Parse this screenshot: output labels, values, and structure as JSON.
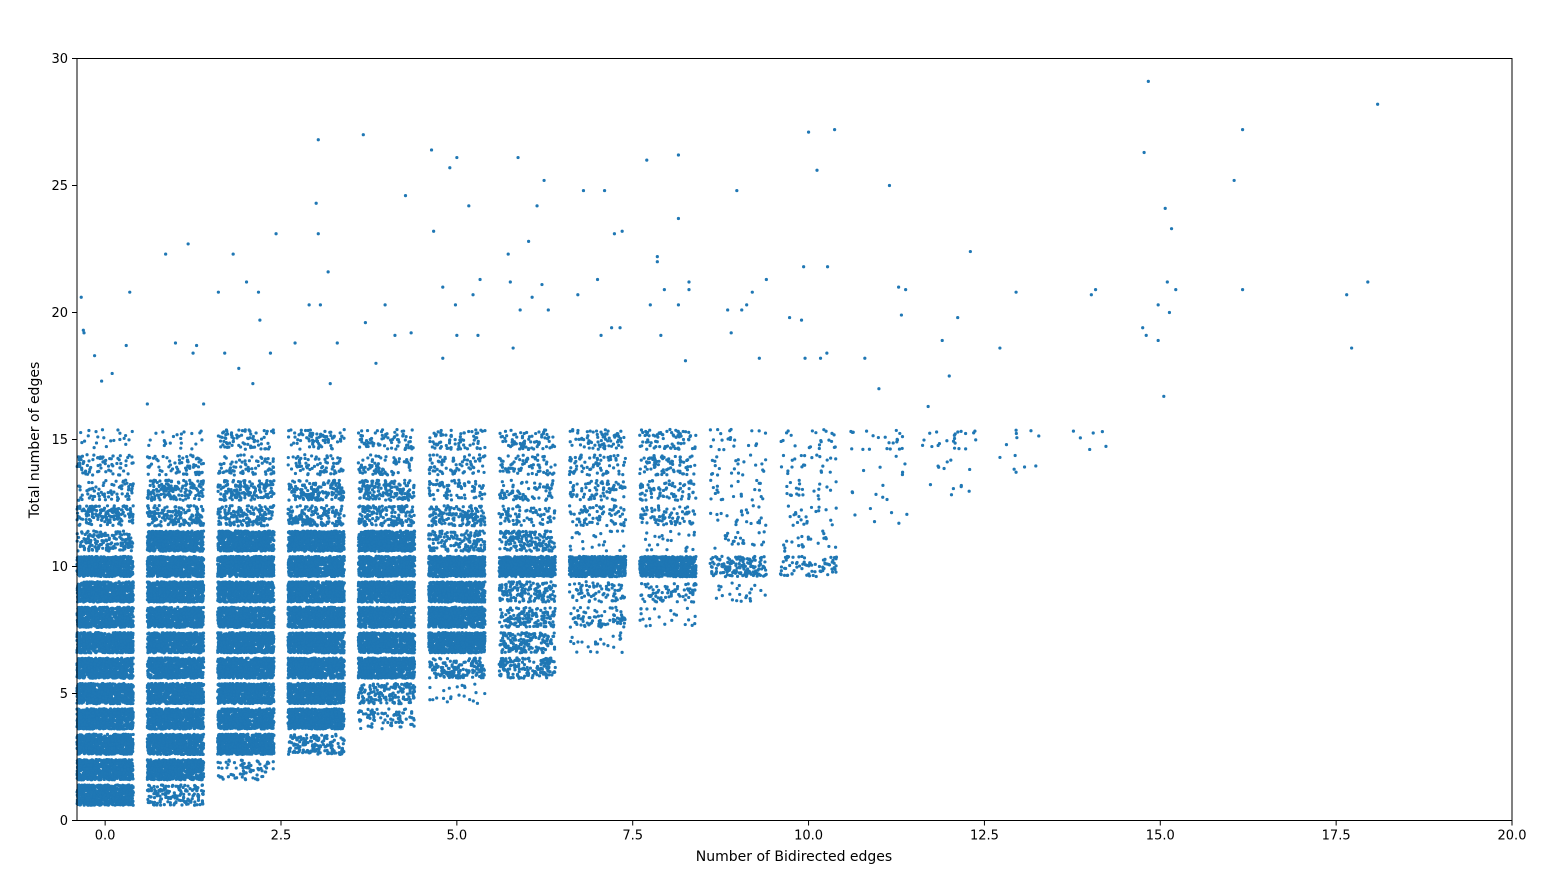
{
  "chart_data": {
    "type": "scatter",
    "title": "",
    "xlabel": "Number of Bidirected edges",
    "ylabel": "Total number of edges",
    "xlim": [
      -0.4,
      20.0
    ],
    "ylim": [
      0,
      30
    ],
    "x_ticks": [
      "0.0",
      "2.5",
      "5.0",
      "7.5",
      "10.0",
      "12.5",
      "15.0",
      "17.5",
      "20.0"
    ],
    "y_ticks": [
      "0",
      "5",
      "10",
      "15",
      "20",
      "25",
      "30"
    ],
    "grid": false,
    "legend": "none",
    "marker_color": "#1f77b4",
    "jitter": 0.4,
    "clusters": [
      {
        "x": 0,
        "levels": [
          [
            1,
            "dense"
          ],
          [
            2,
            "dense"
          ],
          [
            3,
            "dense"
          ],
          [
            4,
            "dense"
          ],
          [
            5,
            "dense"
          ],
          [
            6,
            "dense"
          ],
          [
            7,
            "dense"
          ],
          [
            8,
            "dense"
          ],
          [
            9,
            "dense"
          ],
          [
            10,
            "dense"
          ],
          [
            11,
            "medium"
          ],
          [
            12,
            "medium"
          ],
          [
            13,
            "sparse"
          ],
          [
            14,
            "sparse"
          ],
          [
            15,
            "light"
          ]
        ]
      },
      {
        "x": 1,
        "levels": [
          [
            1,
            "medium"
          ],
          [
            2,
            "dense"
          ],
          [
            3,
            "dense"
          ],
          [
            4,
            "dense"
          ],
          [
            5,
            "dense"
          ],
          [
            6,
            "dense"
          ],
          [
            7,
            "dense"
          ],
          [
            8,
            "dense"
          ],
          [
            9,
            "dense"
          ],
          [
            10,
            "dense"
          ],
          [
            11,
            "dense"
          ],
          [
            12,
            "medium"
          ],
          [
            13,
            "medium"
          ],
          [
            14,
            "sparse"
          ],
          [
            15,
            "light"
          ]
        ]
      },
      {
        "x": 2,
        "levels": [
          [
            2,
            "sparse"
          ],
          [
            3,
            "dense"
          ],
          [
            4,
            "dense"
          ],
          [
            5,
            "dense"
          ],
          [
            6,
            "dense"
          ],
          [
            7,
            "dense"
          ],
          [
            8,
            "dense"
          ],
          [
            9,
            "dense"
          ],
          [
            10,
            "dense"
          ],
          [
            11,
            "dense"
          ],
          [
            12,
            "medium"
          ],
          [
            13,
            "medium"
          ],
          [
            14,
            "sparse"
          ],
          [
            15,
            "sparse"
          ]
        ]
      },
      {
        "x": 3,
        "levels": [
          [
            3,
            "medium"
          ],
          [
            4,
            "dense"
          ],
          [
            5,
            "dense"
          ],
          [
            6,
            "dense"
          ],
          [
            7,
            "dense"
          ],
          [
            8,
            "dense"
          ],
          [
            9,
            "dense"
          ],
          [
            10,
            "dense"
          ],
          [
            11,
            "dense"
          ],
          [
            12,
            "medium"
          ],
          [
            13,
            "medium"
          ],
          [
            14,
            "sparse"
          ],
          [
            15,
            "sparse"
          ]
        ]
      },
      {
        "x": 4,
        "levels": [
          [
            4,
            "sparse"
          ],
          [
            5,
            "medium"
          ],
          [
            6,
            "dense"
          ],
          [
            7,
            "dense"
          ],
          [
            8,
            "dense"
          ],
          [
            9,
            "dense"
          ],
          [
            10,
            "dense"
          ],
          [
            11,
            "dense"
          ],
          [
            12,
            "medium"
          ],
          [
            13,
            "medium"
          ],
          [
            14,
            "sparse"
          ],
          [
            15,
            "sparse"
          ]
        ]
      },
      {
        "x": 5,
        "levels": [
          [
            5,
            "light"
          ],
          [
            6,
            "medium"
          ],
          [
            7,
            "dense"
          ],
          [
            8,
            "dense"
          ],
          [
            9,
            "dense"
          ],
          [
            10,
            "dense"
          ],
          [
            11,
            "medium"
          ],
          [
            12,
            "medium"
          ],
          [
            13,
            "sparse"
          ],
          [
            14,
            "sparse"
          ],
          [
            15,
            "sparse"
          ]
        ]
      },
      {
        "x": 6,
        "levels": [
          [
            6,
            "medium"
          ],
          [
            7,
            "medium"
          ],
          [
            8,
            "medium"
          ],
          [
            9,
            "medium"
          ],
          [
            10,
            "dense"
          ],
          [
            11,
            "medium"
          ],
          [
            12,
            "sparse"
          ],
          [
            13,
            "sparse"
          ],
          [
            14,
            "sparse"
          ],
          [
            15,
            "sparse"
          ]
        ]
      },
      {
        "x": 7,
        "levels": [
          [
            7,
            "light"
          ],
          [
            8,
            "sparse"
          ],
          [
            9,
            "sparse"
          ],
          [
            10,
            "dense"
          ],
          [
            11,
            "light"
          ],
          [
            12,
            "sparse"
          ],
          [
            13,
            "sparse"
          ],
          [
            14,
            "sparse"
          ],
          [
            15,
            "sparse"
          ]
        ]
      },
      {
        "x": 8,
        "levels": [
          [
            8,
            "light"
          ],
          [
            9,
            "sparse"
          ],
          [
            10,
            "dense"
          ],
          [
            11,
            "light"
          ],
          [
            12,
            "sparse"
          ],
          [
            13,
            "sparse"
          ],
          [
            14,
            "sparse"
          ],
          [
            15,
            "sparse"
          ]
        ]
      },
      {
        "x": 9,
        "levels": [
          [
            9,
            "light"
          ],
          [
            10,
            "medium"
          ],
          [
            11,
            "light"
          ],
          [
            12,
            "light"
          ],
          [
            13,
            "light"
          ],
          [
            14,
            "light"
          ],
          [
            15,
            "light"
          ]
        ]
      },
      {
        "x": 10,
        "levels": [
          [
            10,
            "sparse"
          ],
          [
            11,
            "light"
          ],
          [
            12,
            "light"
          ],
          [
            13,
            "light"
          ],
          [
            14,
            "light"
          ],
          [
            15,
            "light"
          ]
        ]
      },
      {
        "x": 11,
        "levels": [
          [
            12,
            "few"
          ],
          [
            13,
            "few"
          ],
          [
            14,
            "few"
          ],
          [
            15,
            "light"
          ]
        ]
      },
      {
        "x": 12,
        "levels": [
          [
            13,
            "few"
          ],
          [
            14,
            "few"
          ],
          [
            15,
            "light"
          ]
        ]
      },
      {
        "x": 13,
        "levels": [
          [
            14,
            "few"
          ],
          [
            15,
            "few"
          ]
        ]
      },
      {
        "x": 14,
        "levels": [
          [
            15,
            "few"
          ]
        ]
      }
    ],
    "outliers": [
      [
        -0.34,
        20.6
      ],
      [
        -0.31,
        19.3
      ],
      [
        -0.3,
        19.2
      ],
      [
        0.3,
        18.7
      ],
      [
        0.35,
        20.8
      ],
      [
        -0.15,
        18.3
      ],
      [
        -0.05,
        17.3
      ],
      [
        0.1,
        17.6
      ],
      [
        0.86,
        22.3
      ],
      [
        1.18,
        22.7
      ],
      [
        0.6,
        16.4
      ],
      [
        1.0,
        18.8
      ],
      [
        1.3,
        18.7
      ],
      [
        1.25,
        18.4
      ],
      [
        1.4,
        16.4
      ],
      [
        1.61,
        20.8
      ],
      [
        1.7,
        18.4
      ],
      [
        1.82,
        22.3
      ],
      [
        2.01,
        21.2
      ],
      [
        2.18,
        20.8
      ],
      [
        2.2,
        19.7
      ],
      [
        2.35,
        18.4
      ],
      [
        2.43,
        23.1
      ],
      [
        1.9,
        17.8
      ],
      [
        2.1,
        17.2
      ],
      [
        3.03,
        26.8
      ],
      [
        3.17,
        21.6
      ],
      [
        3.0,
        24.3
      ],
      [
        3.03,
        23.1
      ],
      [
        3.06,
        20.3
      ],
      [
        2.9,
        20.3
      ],
      [
        2.7,
        18.8
      ],
      [
        3.3,
        18.8
      ],
      [
        3.2,
        17.2
      ],
      [
        3.67,
        27.0
      ],
      [
        4.27,
        24.6
      ],
      [
        3.98,
        20.3
      ],
      [
        4.12,
        19.1
      ],
      [
        4.35,
        19.2
      ],
      [
        3.7,
        19.6
      ],
      [
        3.85,
        18.0
      ],
      [
        4.64,
        26.4
      ],
      [
        4.9,
        25.7
      ],
      [
        5.0,
        26.1
      ],
      [
        4.67,
        23.2
      ],
      [
        5.17,
        24.2
      ],
      [
        4.8,
        21.0
      ],
      [
        5.23,
        20.7
      ],
      [
        5.33,
        21.3
      ],
      [
        4.98,
        20.3
      ],
      [
        5.0,
        19.1
      ],
      [
        4.8,
        18.2
      ],
      [
        5.3,
        19.1
      ],
      [
        5.87,
        26.1
      ],
      [
        6.24,
        25.2
      ],
      [
        6.14,
        24.2
      ],
      [
        6.02,
        22.8
      ],
      [
        5.73,
        22.3
      ],
      [
        6.21,
        21.1
      ],
      [
        5.76,
        21.2
      ],
      [
        6.07,
        20.6
      ],
      [
        5.9,
        20.1
      ],
      [
        6.3,
        20.1
      ],
      [
        5.8,
        18.6
      ],
      [
        7.1,
        24.8
      ],
      [
        6.8,
        24.8
      ],
      [
        7.24,
        23.1
      ],
      [
        7.35,
        23.2
      ],
      [
        7.0,
        21.3
      ],
      [
        6.72,
        20.7
      ],
      [
        7.2,
        19.4
      ],
      [
        7.05,
        19.1
      ],
      [
        7.32,
        19.4
      ],
      [
        7.7,
        26.0
      ],
      [
        8.15,
        26.2
      ],
      [
        8.15,
        23.7
      ],
      [
        7.85,
        22.0
      ],
      [
        7.85,
        22.2
      ],
      [
        8.3,
        21.2
      ],
      [
        8.3,
        20.9
      ],
      [
        7.95,
        20.9
      ],
      [
        7.75,
        20.3
      ],
      [
        8.15,
        20.3
      ],
      [
        7.9,
        19.1
      ],
      [
        8.25,
        18.1
      ],
      [
        8.98,
        24.8
      ],
      [
        9.4,
        21.3
      ],
      [
        9.2,
        20.8
      ],
      [
        8.85,
        20.1
      ],
      [
        9.05,
        20.1
      ],
      [
        8.9,
        19.2
      ],
      [
        9.3,
        18.2
      ],
      [
        9.12,
        20.3
      ],
      [
        10.0,
        27.1
      ],
      [
        10.37,
        27.2
      ],
      [
        10.12,
        25.6
      ],
      [
        9.93,
        21.8
      ],
      [
        10.27,
        21.8
      ],
      [
        9.9,
        19.7
      ],
      [
        9.73,
        19.8
      ],
      [
        10.26,
        18.4
      ],
      [
        10.17,
        18.2
      ],
      [
        9.95,
        18.2
      ],
      [
        11.15,
        25.0
      ],
      [
        11.28,
        21.0
      ],
      [
        11.38,
        20.9
      ],
      [
        11.32,
        19.9
      ],
      [
        10.8,
        18.2
      ],
      [
        11.0,
        17.0
      ],
      [
        12.3,
        22.4
      ],
      [
        12.12,
        19.8
      ],
      [
        11.9,
        18.9
      ],
      [
        12.0,
        17.5
      ],
      [
        11.7,
        16.3
      ],
      [
        12.95,
        20.8
      ],
      [
        12.72,
        18.6
      ],
      [
        14.02,
        20.7
      ],
      [
        14.08,
        20.9
      ],
      [
        14.83,
        29.1
      ],
      [
        14.77,
        26.3
      ],
      [
        15.07,
        24.1
      ],
      [
        15.16,
        23.3
      ],
      [
        15.1,
        21.2
      ],
      [
        15.22,
        20.9
      ],
      [
        14.97,
        20.3
      ],
      [
        15.13,
        20.0
      ],
      [
        14.75,
        19.4
      ],
      [
        14.8,
        19.1
      ],
      [
        14.97,
        18.9
      ],
      [
        15.05,
        16.7
      ],
      [
        16.05,
        25.2
      ],
      [
        16.17,
        27.2
      ],
      [
        16.17,
        20.9
      ],
      [
        18.09,
        28.2
      ],
      [
        17.95,
        21.2
      ],
      [
        17.65,
        20.7
      ],
      [
        17.72,
        18.6
      ]
    ]
  }
}
